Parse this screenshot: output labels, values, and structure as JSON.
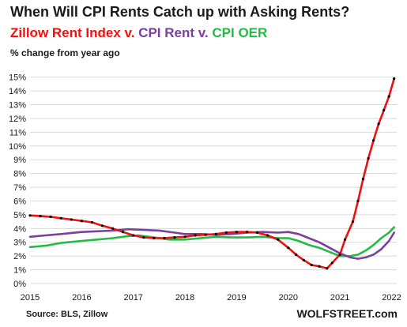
{
  "chart_data": {
    "type": "line",
    "title": "When Will CPI Rents Catch up with Asking Rents?",
    "subtitle_parts": [
      {
        "text": "Zillow Rent Index",
        "color": "#ee1111"
      },
      {
        "text": " v. ",
        "color": "#ee1111"
      },
      {
        "text": "CPI Rent",
        "color": "#7b3fa0"
      },
      {
        "text": " v. ",
        "color": "#7b3fa0"
      },
      {
        "text": "CPI OER",
        "color": "#22bb44"
      }
    ],
    "ylabel": "% change from year ago",
    "source": "Source: BLS, Zillow",
    "brand": "WOLFSTREET.com",
    "xlim": [
      2015,
      2022.1
    ],
    "ylim": [
      0,
      15.5
    ],
    "x_ticks": [
      "2015",
      "2016",
      "2017",
      "2018",
      "2019",
      "2020",
      "2021",
      "2022"
    ],
    "y_ticks": [
      "0%",
      "1%",
      "2%",
      "3%",
      "4%",
      "5%",
      "6%",
      "7%",
      "8%",
      "9%",
      "10%",
      "11%",
      "12%",
      "13%",
      "14%",
      "15%"
    ],
    "grid": "horizontal",
    "series": [
      {
        "name": "Zillow Rent Index",
        "color": "#ee1111",
        "markers": true,
        "points": [
          [
            2015.0,
            4.95
          ],
          [
            2015.2,
            4.9
          ],
          [
            2015.4,
            4.85
          ],
          [
            2015.6,
            4.75
          ],
          [
            2015.8,
            4.65
          ],
          [
            2016.0,
            4.55
          ],
          [
            2016.2,
            4.45
          ],
          [
            2016.4,
            4.2
          ],
          [
            2016.6,
            4.0
          ],
          [
            2016.8,
            3.75
          ],
          [
            2017.0,
            3.5
          ],
          [
            2017.2,
            3.35
          ],
          [
            2017.4,
            3.3
          ],
          [
            2017.6,
            3.3
          ],
          [
            2017.8,
            3.35
          ],
          [
            2018.0,
            3.4
          ],
          [
            2018.2,
            3.5
          ],
          [
            2018.4,
            3.55
          ],
          [
            2018.6,
            3.6
          ],
          [
            2018.8,
            3.7
          ],
          [
            2019.0,
            3.75
          ],
          [
            2019.2,
            3.75
          ],
          [
            2019.4,
            3.7
          ],
          [
            2019.6,
            3.5
          ],
          [
            2019.8,
            3.2
          ],
          [
            2020.0,
            2.6
          ],
          [
            2020.15,
            2.1
          ],
          [
            2020.3,
            1.7
          ],
          [
            2020.45,
            1.35
          ],
          [
            2020.6,
            1.25
          ],
          [
            2020.75,
            1.1
          ],
          [
            2020.85,
            1.5
          ],
          [
            2021.0,
            2.1
          ],
          [
            2021.1,
            3.2
          ],
          [
            2021.25,
            4.5
          ],
          [
            2021.35,
            6.0
          ],
          [
            2021.45,
            7.6
          ],
          [
            2021.55,
            9.1
          ],
          [
            2021.65,
            10.4
          ],
          [
            2021.75,
            11.6
          ],
          [
            2021.85,
            12.6
          ],
          [
            2021.95,
            13.6
          ],
          [
            2022.05,
            14.9
          ]
        ]
      },
      {
        "name": "CPI Rent",
        "color": "#7b3fa0",
        "markers": false,
        "points": [
          [
            2015.0,
            3.4
          ],
          [
            2015.3,
            3.5
          ],
          [
            2015.6,
            3.6
          ],
          [
            2016.0,
            3.75
          ],
          [
            2016.3,
            3.8
          ],
          [
            2016.6,
            3.85
          ],
          [
            2016.9,
            3.95
          ],
          [
            2017.2,
            3.9
          ],
          [
            2017.5,
            3.85
          ],
          [
            2017.8,
            3.7
          ],
          [
            2018.0,
            3.6
          ],
          [
            2018.3,
            3.6
          ],
          [
            2018.6,
            3.55
          ],
          [
            2018.9,
            3.6
          ],
          [
            2019.2,
            3.7
          ],
          [
            2019.5,
            3.75
          ],
          [
            2019.8,
            3.7
          ],
          [
            2020.0,
            3.75
          ],
          [
            2020.2,
            3.6
          ],
          [
            2020.4,
            3.3
          ],
          [
            2020.6,
            3.0
          ],
          [
            2020.8,
            2.6
          ],
          [
            2021.0,
            2.2
          ],
          [
            2021.2,
            1.9
          ],
          [
            2021.35,
            1.8
          ],
          [
            2021.5,
            1.9
          ],
          [
            2021.65,
            2.1
          ],
          [
            2021.8,
            2.5
          ],
          [
            2021.95,
            3.1
          ],
          [
            2022.05,
            3.7
          ]
        ]
      },
      {
        "name": "CPI OER",
        "color": "#22bb44",
        "markers": false,
        "points": [
          [
            2015.0,
            2.65
          ],
          [
            2015.3,
            2.75
          ],
          [
            2015.6,
            2.95
          ],
          [
            2016.0,
            3.1
          ],
          [
            2016.3,
            3.2
          ],
          [
            2016.6,
            3.3
          ],
          [
            2016.9,
            3.45
          ],
          [
            2017.1,
            3.5
          ],
          [
            2017.4,
            3.35
          ],
          [
            2017.7,
            3.2
          ],
          [
            2018.0,
            3.2
          ],
          [
            2018.3,
            3.3
          ],
          [
            2018.6,
            3.4
          ],
          [
            2018.9,
            3.35
          ],
          [
            2019.2,
            3.35
          ],
          [
            2019.5,
            3.4
          ],
          [
            2019.8,
            3.3
          ],
          [
            2020.0,
            3.3
          ],
          [
            2020.2,
            3.1
          ],
          [
            2020.4,
            2.8
          ],
          [
            2020.6,
            2.6
          ],
          [
            2020.8,
            2.3
          ],
          [
            2021.0,
            2.0
          ],
          [
            2021.2,
            2.0
          ],
          [
            2021.35,
            2.1
          ],
          [
            2021.5,
            2.4
          ],
          [
            2021.65,
            2.8
          ],
          [
            2021.8,
            3.3
          ],
          [
            2021.95,
            3.7
          ],
          [
            2022.05,
            4.1
          ]
        ]
      }
    ]
  }
}
